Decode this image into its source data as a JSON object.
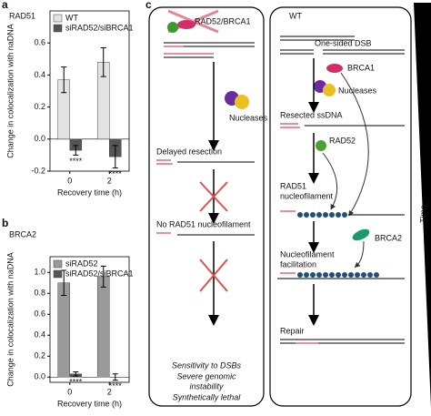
{
  "chart_data": [
    {
      "type": "bar",
      "panel": "a",
      "title": "RAD51",
      "ylabel": "Change in colocalization with naDNA",
      "xlabel": "Recovery time (h)",
      "categories": [
        "0",
        "2"
      ],
      "series": [
        {
          "name": "WT",
          "color": "#e3e3e3",
          "values": [
            0.37,
            0.48
          ],
          "errors": [
            0.08,
            0.09
          ]
        },
        {
          "name": "siRAD52/siBRCA1",
          "color": "#555555",
          "values": [
            -0.07,
            -0.11
          ],
          "errors": [
            0.03,
            0.07
          ],
          "significance": [
            "****",
            "****"
          ]
        }
      ],
      "ylim": [
        -0.2,
        0.8
      ],
      "yticks": [
        -0.2,
        {
          "value": 0,
          "label": "0.0"
        },
        0.2,
        0.4,
        0.6
      ],
      "legend": "upper left"
    },
    {
      "type": "bar",
      "panel": "b",
      "title": "BRCA2",
      "ylabel": "Change in colocalization with naDNA",
      "xlabel": "Recovery time (h)",
      "categories": [
        "0",
        "2"
      ],
      "series": [
        {
          "name": "siRAD52",
          "color": "#9a9a9a",
          "values": [
            0.9,
            0.96
          ],
          "errors": [
            0.12,
            0.1
          ]
        },
        {
          "name": "siRAD52/siBRCA1",
          "color": "#555555",
          "values": [
            0.03,
            0
          ],
          "errors": [
            0.02,
            0.03
          ],
          "significance": [
            "****",
            "****"
          ]
        }
      ],
      "ylim": [
        -0.05,
        1.15
      ],
      "yticks": [
        {
          "value": 0,
          "label": "0.0"
        },
        0.2,
        0.4,
        0.6,
        0.8,
        {
          "value": 1,
          "label": "1.0"
        }
      ],
      "legend": "upper left"
    }
  ],
  "diagram": {
    "panel": "c",
    "left": {
      "complex": "RAD52/BRCA1",
      "nucleases": "Nucleases",
      "step1": "Delayed resection",
      "step2": "No RAD51 nucleofilament",
      "outcome": [
        "Sensitivity to DSBs",
        "Severe genomic",
        "instability",
        "Synthetically lethal"
      ]
    },
    "right": {
      "title": "WT",
      "dsb": "One-sided DSB",
      "brca1": "BRCA1",
      "nucleases": "Nucleases",
      "resected": "Resected ssDNA",
      "rad52": "RAD52",
      "rad51": [
        "RAD51",
        "nucleofilament"
      ],
      "brca2": "BRCA2",
      "facilitation": [
        "Nucleofilament",
        "facilitation"
      ],
      "repair": "Repair"
    },
    "time_label": "Time"
  }
}
